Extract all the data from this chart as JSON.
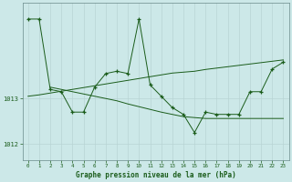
{
  "title": "Graphe pression niveau de la mer (hPa)",
  "bg_color": "#cce8e8",
  "plot_bg_color": "#cce8e8",
  "line_color": "#1a5c1a",
  "grid_color": "#b8d4d4",
  "text_color": "#1a5c1a",
  "xlim": [
    -0.5,
    23.5
  ],
  "ylim": [
    1011.65,
    1015.1
  ],
  "yticks": [
    1012,
    1013
  ],
  "xticks": [
    0,
    1,
    2,
    3,
    4,
    5,
    6,
    7,
    8,
    9,
    10,
    11,
    12,
    13,
    14,
    15,
    16,
    17,
    18,
    19,
    20,
    21,
    22,
    23
  ],
  "main_x": [
    0,
    1,
    2,
    3,
    4,
    5,
    6,
    7,
    8,
    9,
    10,
    11,
    12,
    13,
    14,
    15,
    16,
    17,
    18,
    19,
    20,
    21,
    22,
    23
  ],
  "main_y": [
    1014.75,
    1014.75,
    1013.2,
    1013.15,
    1012.7,
    1012.7,
    1013.25,
    1013.55,
    1013.6,
    1013.55,
    1014.75,
    1013.3,
    1013.05,
    1012.8,
    1012.65,
    1012.25,
    1012.7,
    1012.65,
    1012.65,
    1012.65,
    1013.15,
    1013.15,
    1013.65,
    1013.8
  ],
  "desc_x": [
    2,
    3,
    4,
    5,
    6,
    7,
    8,
    9,
    10,
    11,
    12,
    13,
    14,
    15,
    16,
    17,
    18,
    19,
    20,
    21,
    22,
    23
  ],
  "desc_y": [
    1013.25,
    1013.2,
    1013.15,
    1013.1,
    1013.05,
    1013.0,
    1012.95,
    1012.88,
    1012.82,
    1012.76,
    1012.7,
    1012.65,
    1012.6,
    1012.58,
    1012.56,
    1012.56,
    1012.56,
    1012.56,
    1012.56,
    1012.56,
    1012.56,
    1012.56
  ],
  "asc_x": [
    0,
    1,
    2,
    3,
    4,
    5,
    6,
    7,
    8,
    9,
    10,
    11,
    12,
    13,
    14,
    15,
    16,
    17,
    18,
    19,
    20,
    21,
    22,
    23
  ],
  "asc_y": [
    1013.05,
    1013.08,
    1013.12,
    1013.16,
    1013.2,
    1013.24,
    1013.28,
    1013.32,
    1013.36,
    1013.4,
    1013.44,
    1013.48,
    1013.52,
    1013.56,
    1013.58,
    1013.6,
    1013.64,
    1013.67,
    1013.7,
    1013.73,
    1013.76,
    1013.79,
    1013.82,
    1013.85
  ]
}
